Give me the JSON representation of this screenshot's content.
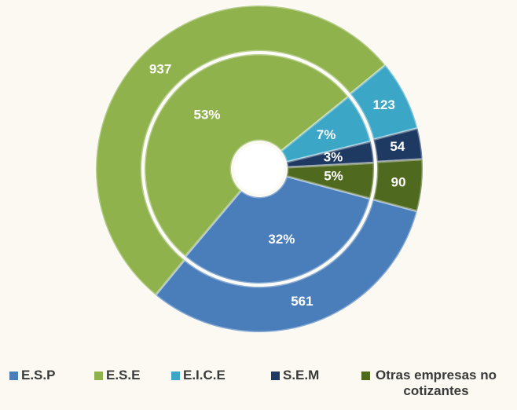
{
  "chart_data": {
    "type": "double-donut",
    "categories": [
      "E.S.P",
      "E.S.E",
      "E.I.C.E",
      "S.E.M",
      "Otras empresas no cotizantes"
    ],
    "values": [
      561,
      937,
      123,
      54,
      90
    ],
    "percentages": [
      32,
      53,
      7,
      3,
      5
    ],
    "percentage_labels": [
      "32%",
      "53%",
      "7%",
      "3%",
      "5%"
    ],
    "colors": [
      "#4a7ebb",
      "#8fb24c",
      "#3ba6c6",
      "#1f3a62",
      "#4f6a1f"
    ]
  }
}
